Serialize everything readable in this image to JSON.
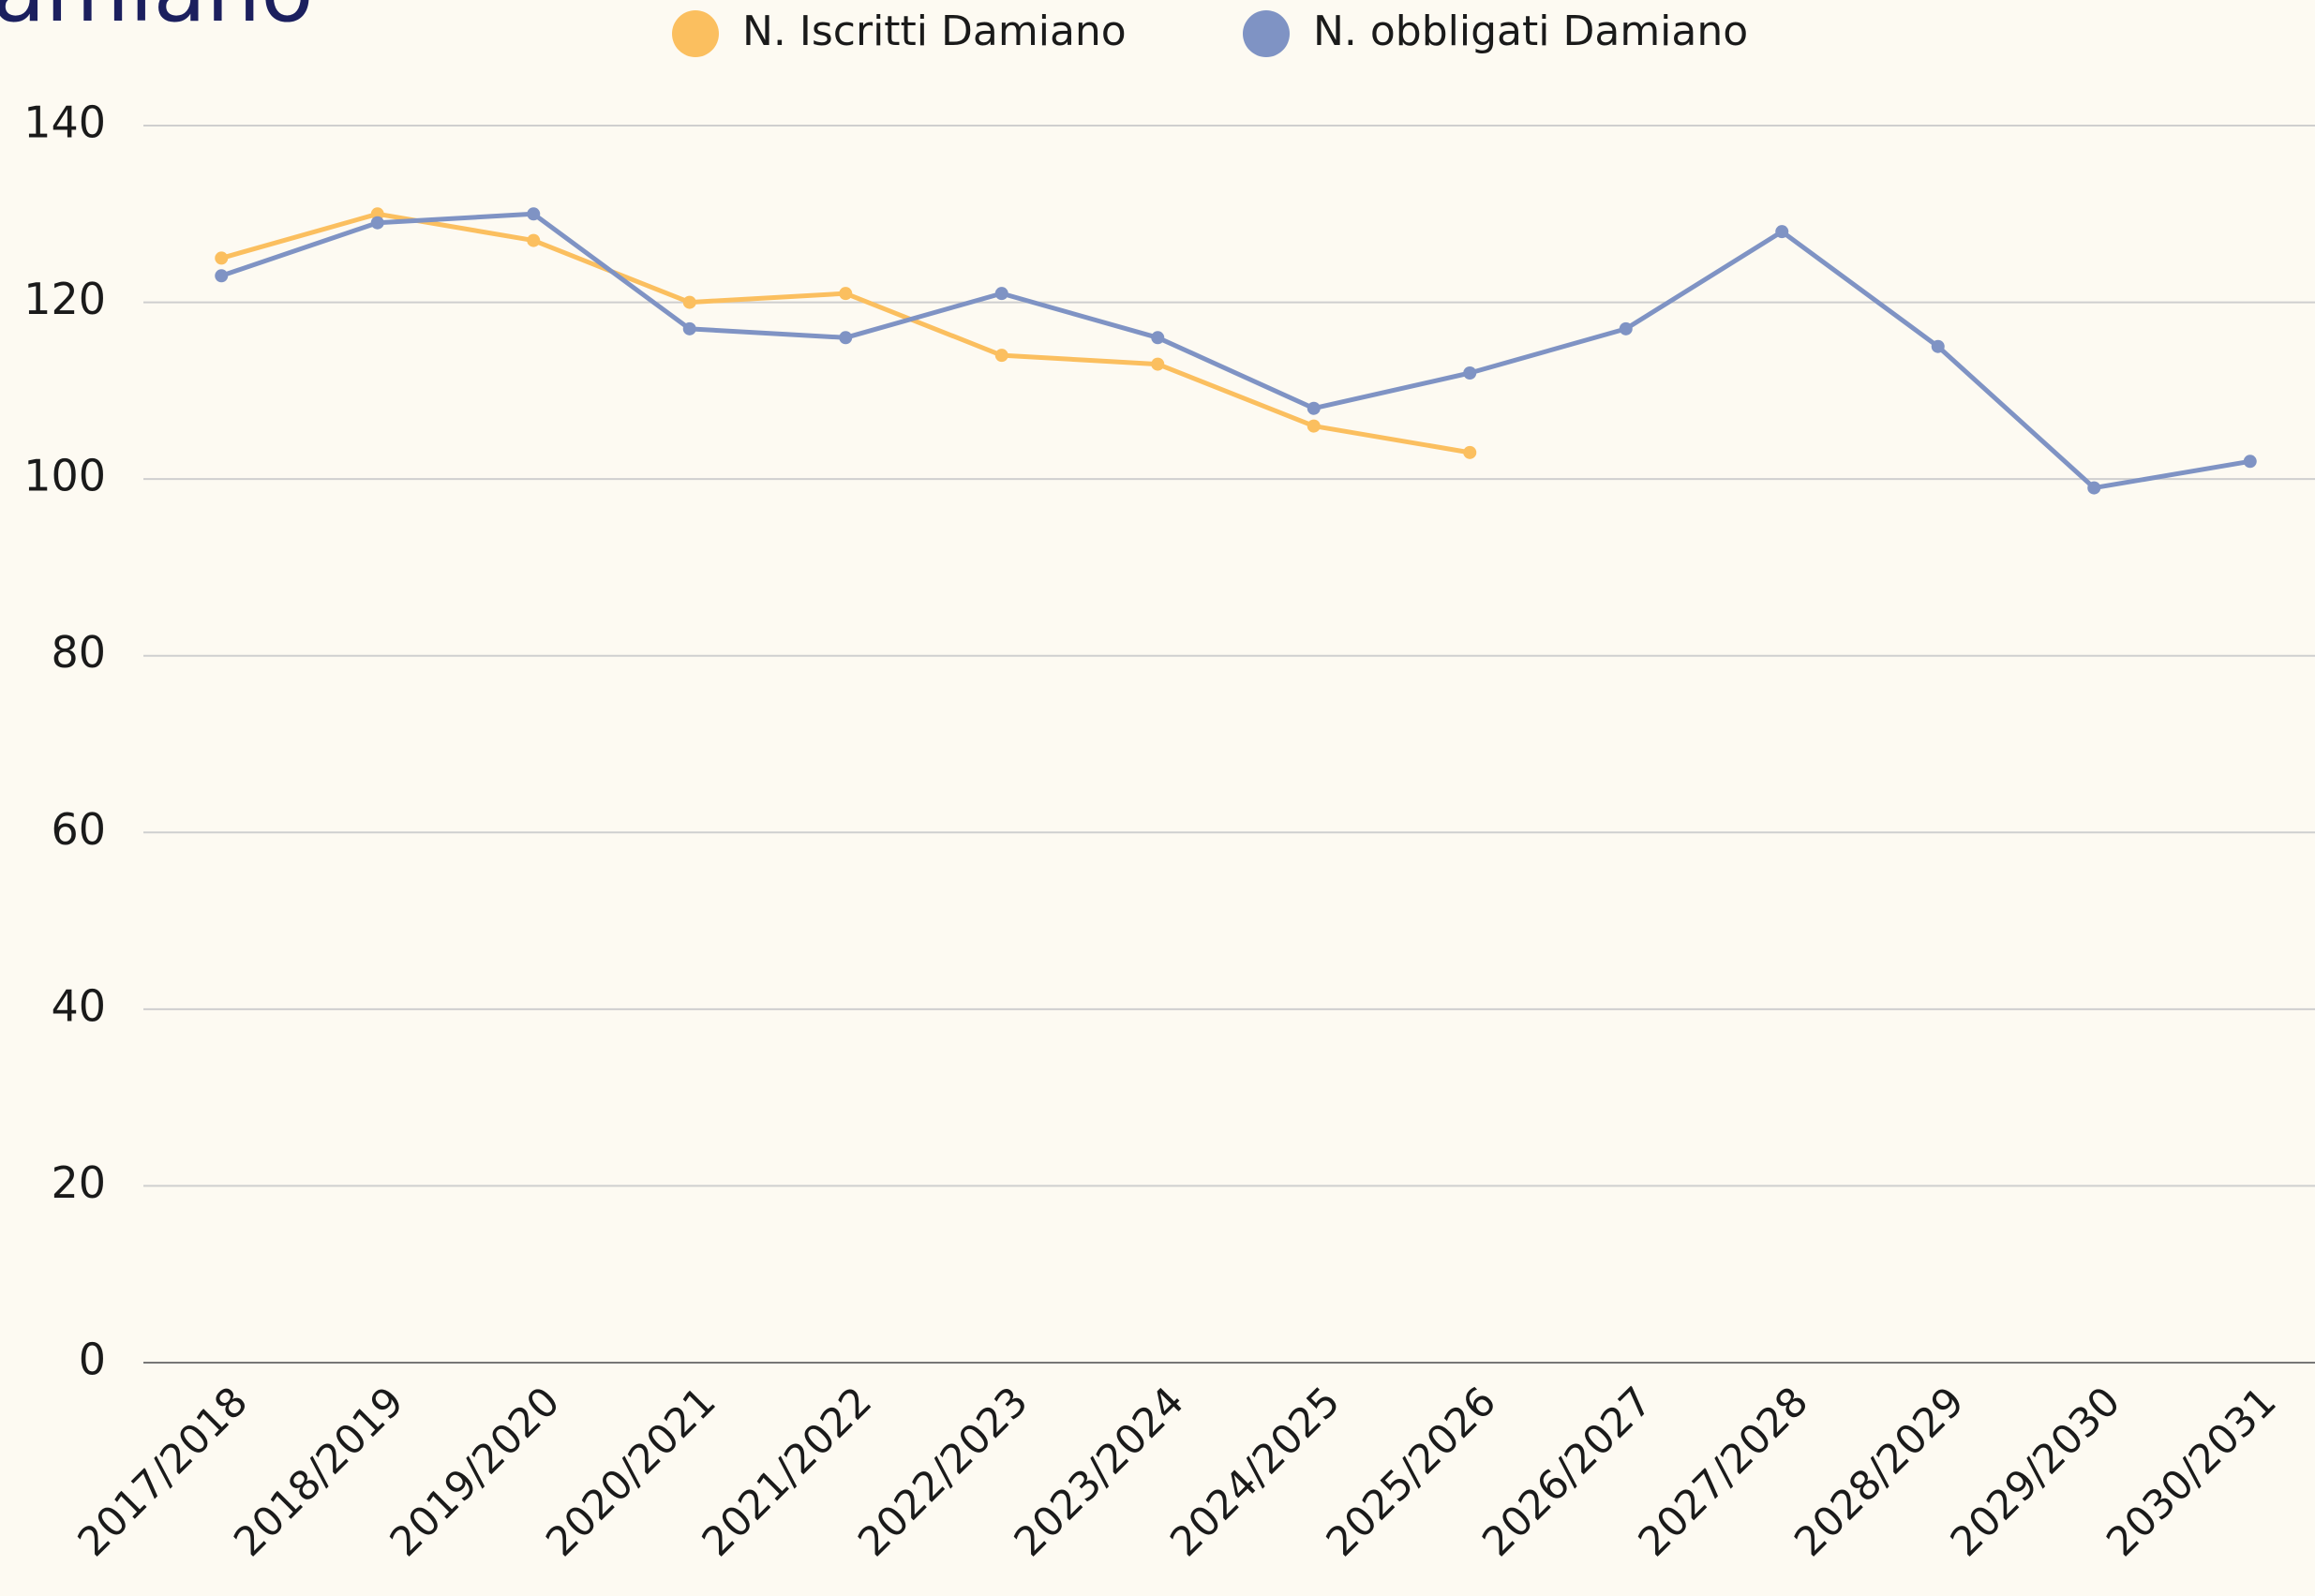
{
  "chart_data": {
    "type": "line",
    "title": "amiano",
    "categories": [
      "2017/2018",
      "2018/2019",
      "2019/2020",
      "2020/2021",
      "2021/2022",
      "2022/2023",
      "2023/2024",
      "2024/2025",
      "2025/2026",
      "2026/2027",
      "2027/2028",
      "2028/2029",
      "2029/2030",
      "2030/2031"
    ],
    "series": [
      {
        "name": "N. Iscritti Damiano",
        "color": "#fbbf5f",
        "values": [
          125,
          130,
          127,
          120,
          121,
          114,
          113,
          106,
          103,
          null,
          null,
          null,
          null,
          null
        ]
      },
      {
        "name": "N. obbligati Damiano",
        "color": "#7f93c4",
        "values": [
          123,
          129,
          130,
          117,
          116,
          121,
          116,
          108,
          112,
          117,
          128,
          115,
          99,
          102
        ]
      }
    ],
    "ylim": [
      0,
      140
    ],
    "yticks": [
      0,
      20,
      40,
      60,
      80,
      100,
      120,
      140
    ],
    "grid": true,
    "legend": "top"
  }
}
